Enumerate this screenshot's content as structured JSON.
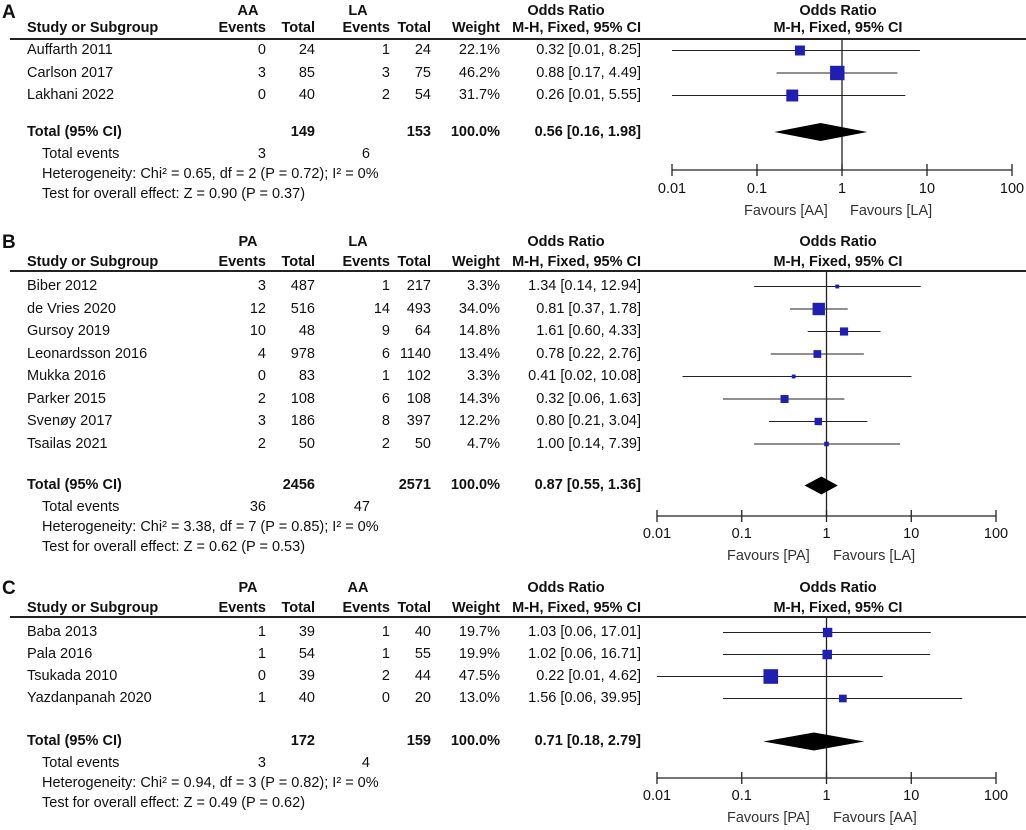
{
  "chart_data": [
    {
      "type": "forest",
      "panel": "A",
      "group1": "AA",
      "group2": "LA",
      "col_study": "Study or Subgroup",
      "col_events": "Events",
      "col_total": "Total",
      "col_weight": "Weight",
      "col_or": "Odds Ratio",
      "col_method": "M-H, Fixed, 95% CI",
      "studies": [
        {
          "name": "Auffarth 2011",
          "e1": "0",
          "t1": "24",
          "e2": "1",
          "t2": "24",
          "weight": "22.1%",
          "ci_text": "0.32 [0.01, 8.25]",
          "or": 0.32,
          "lo": 0.01,
          "hi": 8.25,
          "w": 22.1
        },
        {
          "name": "Carlson 2017",
          "e1": "3",
          "t1": "85",
          "e2": "3",
          "t2": "75",
          "weight": "46.2%",
          "ci_text": "0.88 [0.17, 4.49]",
          "or": 0.88,
          "lo": 0.17,
          "hi": 4.49,
          "w": 46.2
        },
        {
          "name": "Lakhani 2022",
          "e1": "0",
          "t1": "40",
          "e2": "2",
          "t2": "54",
          "weight": "31.7%",
          "ci_text": "0.26 [0.01, 5.55]",
          "or": 0.26,
          "lo": 0.01,
          "hi": 5.55,
          "w": 31.7
        }
      ],
      "total": {
        "label": "Total (95% CI)",
        "t1": "149",
        "t2": "153",
        "weight": "100.0%",
        "ci_text": "0.56 [0.16, 1.98]",
        "or": 0.56,
        "lo": 0.16,
        "hi": 1.98
      },
      "events_label": "Total events",
      "events1": "3",
      "events2": "6",
      "heterogeneity": "Heterogeneity: Chi² = 0.65, df = 2 (P = 0.72); I² = 0%",
      "overall": "Test for overall effect: Z = 0.90 (P = 0.37)",
      "axis_ticks": [
        {
          "v": 0.01,
          "label": "0.01"
        },
        {
          "v": 0.1,
          "label": "0.1"
        },
        {
          "v": 1,
          "label": "1"
        },
        {
          "v": 10,
          "label": "10"
        },
        {
          "v": 100,
          "label": "100"
        }
      ],
      "xlim": [
        0.01,
        100
      ],
      "favours_left": "Favours [AA]",
      "favours_right": "Favours [LA]"
    },
    {
      "type": "forest",
      "panel": "B",
      "group1": "PA",
      "group2": "LA",
      "col_study": "Study or Subgroup",
      "col_events": "Events",
      "col_total": "Total",
      "col_weight": "Weight",
      "col_or": "Odds Ratio",
      "col_method": "M-H, Fixed, 95% CI",
      "studies": [
        {
          "name": "Biber 2012",
          "e1": "3",
          "t1": "487",
          "e2": "1",
          "t2": "217",
          "weight": "3.3%",
          "ci_text": "1.34 [0.14, 12.94]",
          "or": 1.34,
          "lo": 0.14,
          "hi": 12.94,
          "w": 3.3
        },
        {
          "name": "de Vries 2020",
          "e1": "12",
          "t1": "516",
          "e2": "14",
          "t2": "493",
          "weight": "34.0%",
          "ci_text": "0.81 [0.37, 1.78]",
          "or": 0.81,
          "lo": 0.37,
          "hi": 1.78,
          "w": 34.0
        },
        {
          "name": "Gursoy 2019",
          "e1": "10",
          "t1": "48",
          "e2": "9",
          "t2": "64",
          "weight": "14.8%",
          "ci_text": "1.61 [0.60, 4.33]",
          "or": 1.61,
          "lo": 0.6,
          "hi": 4.33,
          "w": 14.8
        },
        {
          "name": "Leonardsson 2016",
          "e1": "4",
          "t1": "978",
          "e2": "6",
          "t2": "1140",
          "weight": "13.4%",
          "ci_text": "0.78 [0.22, 2.76]",
          "or": 0.78,
          "lo": 0.22,
          "hi": 2.76,
          "w": 13.4
        },
        {
          "name": "Mukka 2016",
          "e1": "0",
          "t1": "83",
          "e2": "1",
          "t2": "102",
          "weight": "3.3%",
          "ci_text": "0.41 [0.02, 10.08]",
          "or": 0.41,
          "lo": 0.02,
          "hi": 10.08,
          "w": 3.3
        },
        {
          "name": "Parker 2015",
          "e1": "2",
          "t1": "108",
          "e2": "6",
          "t2": "108",
          "weight": "14.3%",
          "ci_text": "0.32 [0.06, 1.63]",
          "or": 0.32,
          "lo": 0.06,
          "hi": 1.63,
          "w": 14.3
        },
        {
          "name": "Svenøy 2017",
          "e1": "3",
          "t1": "186",
          "e2": "8",
          "t2": "397",
          "weight": "12.2%",
          "ci_text": "0.80 [0.21, 3.04]",
          "or": 0.8,
          "lo": 0.21,
          "hi": 3.04,
          "w": 12.2
        },
        {
          "name": "Tsailas 2021",
          "e1": "2",
          "t1": "50",
          "e2": "2",
          "t2": "50",
          "weight": "4.7%",
          "ci_text": "1.00 [0.14, 7.39]",
          "or": 1.0,
          "lo": 0.14,
          "hi": 7.39,
          "w": 4.7
        }
      ],
      "total": {
        "label": "Total (95% CI)",
        "t1": "2456",
        "t2": "2571",
        "weight": "100.0%",
        "ci_text": "0.87 [0.55, 1.36]",
        "or": 0.87,
        "lo": 0.55,
        "hi": 1.36
      },
      "events_label": "Total events",
      "events1": "36",
      "events2": "47",
      "heterogeneity": "Heterogeneity: Chi² = 3.38, df = 7 (P = 0.85); I² = 0%",
      "overall": "Test for overall effect: Z = 0.62 (P = 0.53)",
      "axis_ticks": [
        {
          "v": 0.01,
          "label": "0.01"
        },
        {
          "v": 0.1,
          "label": "0.1"
        },
        {
          "v": 1,
          "label": "1"
        },
        {
          "v": 10,
          "label": "10"
        },
        {
          "v": 100,
          "label": "100"
        }
      ],
      "xlim": [
        0.01,
        100
      ],
      "favours_left": "Favours [PA]",
      "favours_right": "Favours [LA]"
    },
    {
      "type": "forest",
      "panel": "C",
      "group1": "PA",
      "group2": "AA",
      "col_study": "Study or Subgroup",
      "col_events": "Events",
      "col_total": "Total",
      "col_weight": "Weight",
      "col_or": "Odds Ratio",
      "col_method": "M-H, Fixed, 95% CI",
      "studies": [
        {
          "name": "Baba 2013",
          "e1": "1",
          "t1": "39",
          "e2": "1",
          "t2": "40",
          "weight": "19.7%",
          "ci_text": "1.03 [0.06, 17.01]",
          "or": 1.03,
          "lo": 0.06,
          "hi": 17.01,
          "w": 19.7
        },
        {
          "name": "Pala 2016",
          "e1": "1",
          "t1": "54",
          "e2": "1",
          "t2": "55",
          "weight": "19.9%",
          "ci_text": "1.02 [0.06, 16.71]",
          "or": 1.02,
          "lo": 0.06,
          "hi": 16.71,
          "w": 19.9
        },
        {
          "name": "Tsukada 2010",
          "e1": "0",
          "t1": "39",
          "e2": "2",
          "t2": "44",
          "weight": "47.5%",
          "ci_text": "0.22 [0.01, 4.62]",
          "or": 0.22,
          "lo": 0.01,
          "hi": 4.62,
          "w": 47.5
        },
        {
          "name": "Yazdanpanah 2020",
          "e1": "1",
          "t1": "40",
          "e2": "0",
          "t2": "20",
          "weight": "13.0%",
          "ci_text": "1.56 [0.06, 39.95]",
          "or": 1.56,
          "lo": 0.06,
          "hi": 39.95,
          "w": 13.0
        }
      ],
      "total": {
        "label": "Total (95% CI)",
        "t1": "172",
        "t2": "159",
        "weight": "100.0%",
        "ci_text": "0.71 [0.18, 2.79]",
        "or": 0.71,
        "lo": 0.18,
        "hi": 2.79
      },
      "events_label": "Total events",
      "events1": "3",
      "events2": "4",
      "heterogeneity": "Heterogeneity: Chi² = 0.94, df = 3 (P = 0.82); I² = 0%",
      "overall": "Test for overall effect: Z = 0.49 (P = 0.62)",
      "axis_ticks": [
        {
          "v": 0.01,
          "label": "0.01"
        },
        {
          "v": 0.1,
          "label": "0.1"
        },
        {
          "v": 1,
          "label": "1"
        },
        {
          "v": 10,
          "label": "10"
        },
        {
          "v": 100,
          "label": "100"
        }
      ],
      "xlim": [
        0.01,
        100
      ],
      "favours_left": "Favours [PA]",
      "favours_right": "Favours [AA]"
    }
  ],
  "colors": {
    "square": "#1f1fb4",
    "text": "#111111",
    "line": "#222222"
  }
}
